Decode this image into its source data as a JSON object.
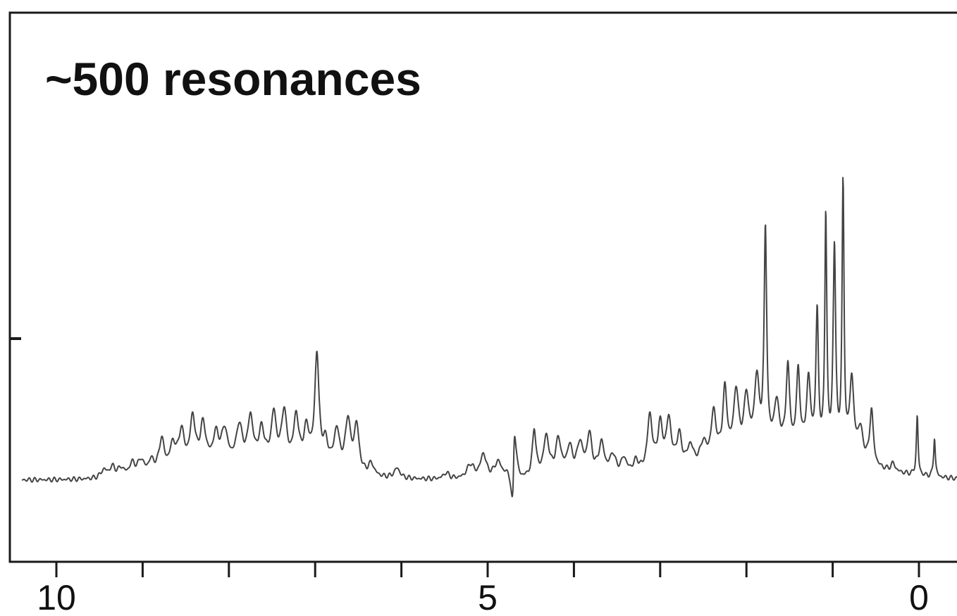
{
  "chart_data": {
    "type": "line",
    "annotation": "~500 resonances",
    "x_ticks": [
      10,
      5,
      0
    ],
    "xlim": [
      10.5,
      -0.45
    ],
    "ylim": [
      0,
      1
    ],
    "grid": false,
    "legend": "none",
    "line_color": "#444444",
    "peaks": [
      {
        "x": 9.45,
        "h": 0.02,
        "w": 0.04
      },
      {
        "x": 9.35,
        "h": 0.025,
        "w": 0.04
      },
      {
        "x": 9.25,
        "h": 0.02,
        "w": 0.04
      },
      {
        "x": 9.12,
        "h": 0.03,
        "w": 0.04
      },
      {
        "x": 9.02,
        "h": 0.035,
        "w": 0.04
      },
      {
        "x": 8.9,
        "h": 0.03,
        "w": 0.04
      },
      {
        "x": 8.78,
        "h": 0.08,
        "w": 0.035
      },
      {
        "x": 8.65,
        "h": 0.06,
        "w": 0.04
      },
      {
        "x": 8.55,
        "h": 0.09,
        "w": 0.04
      },
      {
        "x": 8.42,
        "h": 0.12,
        "w": 0.035
      },
      {
        "x": 8.3,
        "h": 0.1,
        "w": 0.04
      },
      {
        "x": 8.15,
        "h": 0.07,
        "w": 0.04
      },
      {
        "x": 8.05,
        "h": 0.08,
        "w": 0.04
      },
      {
        "x": 7.88,
        "h": 0.09,
        "w": 0.04
      },
      {
        "x": 7.75,
        "h": 0.11,
        "w": 0.035
      },
      {
        "x": 7.62,
        "h": 0.08,
        "w": 0.04
      },
      {
        "x": 7.48,
        "h": 0.12,
        "w": 0.035
      },
      {
        "x": 7.36,
        "h": 0.13,
        "w": 0.035
      },
      {
        "x": 7.22,
        "h": 0.12,
        "w": 0.035
      },
      {
        "x": 7.1,
        "h": 0.09,
        "w": 0.04
      },
      {
        "x": 6.98,
        "h": 0.28,
        "w": 0.03
      },
      {
        "x": 6.88,
        "h": 0.06,
        "w": 0.04
      },
      {
        "x": 6.75,
        "h": 0.1,
        "w": 0.04
      },
      {
        "x": 6.62,
        "h": 0.13,
        "w": 0.035
      },
      {
        "x": 6.52,
        "h": 0.12,
        "w": 0.035
      },
      {
        "x": 6.35,
        "h": 0.03,
        "w": 0.04
      },
      {
        "x": 6.05,
        "h": 0.025,
        "w": 0.04
      },
      {
        "x": 5.48,
        "h": 0.015,
        "w": 0.04
      },
      {
        "x": 5.2,
        "h": 0.035,
        "w": 0.05
      },
      {
        "x": 5.05,
        "h": 0.06,
        "w": 0.04
      },
      {
        "x": 4.88,
        "h": 0.04,
        "w": 0.05
      },
      {
        "x": 4.72,
        "h": 0.03,
        "w": 0.05
      },
      {
        "x": 4.46,
        "h": 0.12,
        "w": 0.025
      },
      {
        "x": 4.32,
        "h": 0.1,
        "w": 0.04
      },
      {
        "x": 4.18,
        "h": 0.09,
        "w": 0.04
      },
      {
        "x": 4.05,
        "h": 0.07,
        "w": 0.04
      },
      {
        "x": 3.93,
        "h": 0.08,
        "w": 0.04
      },
      {
        "x": 3.82,
        "h": 0.1,
        "w": 0.035
      },
      {
        "x": 3.68,
        "h": 0.08,
        "w": 0.04
      },
      {
        "x": 3.55,
        "h": 0.05,
        "w": 0.04
      },
      {
        "x": 3.42,
        "h": 0.04,
        "w": 0.04
      },
      {
        "x": 3.28,
        "h": 0.03,
        "w": 0.04
      },
      {
        "x": 3.12,
        "h": 0.14,
        "w": 0.035
      },
      {
        "x": 3.0,
        "h": 0.11,
        "w": 0.035
      },
      {
        "x": 2.9,
        "h": 0.12,
        "w": 0.035
      },
      {
        "x": 2.78,
        "h": 0.08,
        "w": 0.035
      },
      {
        "x": 2.65,
        "h": 0.05,
        "w": 0.04
      },
      {
        "x": 2.5,
        "h": 0.05,
        "w": 0.04
      },
      {
        "x": 2.38,
        "h": 0.12,
        "w": 0.035
      },
      {
        "x": 2.25,
        "h": 0.17,
        "w": 0.03
      },
      {
        "x": 2.12,
        "h": 0.16,
        "w": 0.035
      },
      {
        "x": 2.0,
        "h": 0.14,
        "w": 0.035
      },
      {
        "x": 1.88,
        "h": 0.18,
        "w": 0.035
      },
      {
        "x": 1.78,
        "h": 0.55,
        "w": 0.018
      },
      {
        "x": 1.65,
        "h": 0.12,
        "w": 0.04
      },
      {
        "x": 1.52,
        "h": 0.21,
        "w": 0.025
      },
      {
        "x": 1.4,
        "h": 0.2,
        "w": 0.025
      },
      {
        "x": 1.28,
        "h": 0.18,
        "w": 0.03
      },
      {
        "x": 1.18,
        "h": 0.35,
        "w": 0.018
      },
      {
        "x": 1.08,
        "h": 0.6,
        "w": 0.014
      },
      {
        "x": 0.98,
        "h": 0.52,
        "w": 0.018
      },
      {
        "x": 0.88,
        "h": 0.68,
        "w": 0.014
      },
      {
        "x": 0.78,
        "h": 0.2,
        "w": 0.03
      },
      {
        "x": 0.68,
        "h": 0.08,
        "w": 0.04
      },
      {
        "x": 0.55,
        "h": 0.14,
        "w": 0.025
      },
      {
        "x": 0.3,
        "h": 0.02,
        "w": 0.03
      },
      {
        "x": 0.02,
        "h": 0.15,
        "w": 0.012
      },
      {
        "x": -0.18,
        "h": 0.1,
        "w": 0.012
      }
    ],
    "dispersive": {
      "x": 4.7,
      "h": 0.12,
      "w": 0.018
    }
  }
}
